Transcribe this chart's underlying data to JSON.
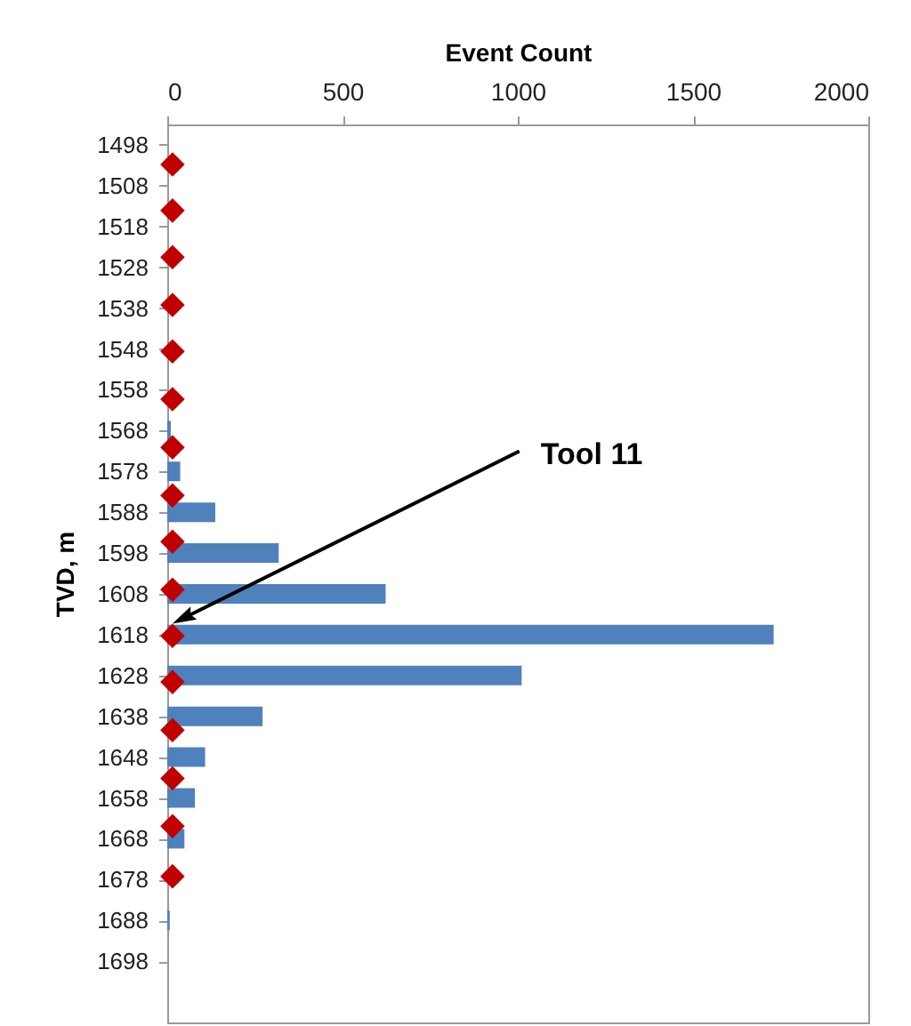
{
  "chart_data": {
    "type": "bar",
    "orientation": "horizontal",
    "xlabel": "Event Count",
    "ylabel": "TVD, m",
    "xlim": [
      0,
      2000
    ],
    "xticks": [
      0,
      500,
      1000,
      1500,
      2000
    ],
    "ylim": [
      1713,
      1493
    ],
    "yticks": [
      1498,
      1508,
      1518,
      1528,
      1538,
      1548,
      1558,
      1568,
      1578,
      1588,
      1598,
      1608,
      1618,
      1628,
      1638,
      1648,
      1658,
      1668,
      1678,
      1688,
      1698
    ],
    "x": [
      1498,
      1508,
      1518,
      1528,
      1538,
      1548,
      1558,
      1568,
      1578,
      1588,
      1598,
      1608,
      1618,
      1628,
      1638,
      1648,
      1658,
      1668,
      1678,
      1688,
      1698
    ],
    "marker": "diamond",
    "series": [
      {
        "type": "bar",
        "color": "#4f81bd",
        "values": [
          0,
          0,
          0,
          0,
          0,
          0,
          0,
          10,
          37,
          137,
          318,
          623,
          1730,
          1011,
          272,
          108,
          79,
          49,
          0,
          7,
          0
        ]
      },
      {
        "type": "scatter",
        "color": "#c00000",
        "x": [
          1502.8,
          1514.1,
          1525.5,
          1537.2,
          1548.6,
          1560.3,
          1572.1,
          1583.9,
          1595.2,
          1607.0,
          1618.3,
          1629.6,
          1641.4,
          1653.2,
          1664.9,
          1677.2
        ],
        "values": [
          15,
          15,
          15,
          15,
          15,
          15,
          15,
          15,
          15,
          15,
          15,
          15,
          15,
          15,
          15,
          15
        ]
      }
    ],
    "annotations": [
      {
        "text": "Tool 11",
        "x": 45,
        "y": 1614
      }
    ]
  }
}
